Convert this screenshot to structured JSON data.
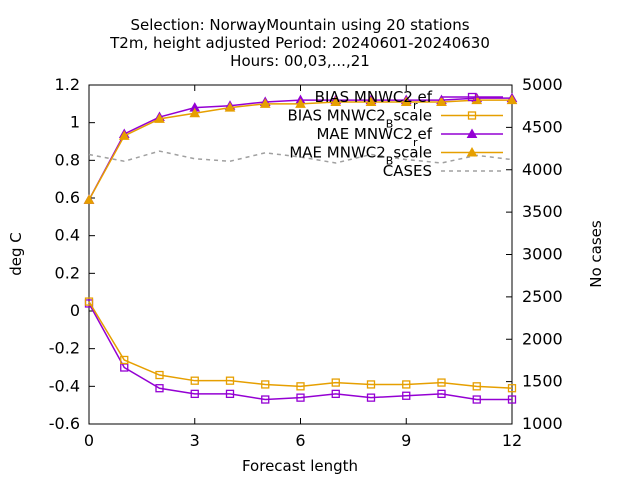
{
  "chart_data": {
    "type": "line",
    "title_lines": [
      "Selection: NorwayMountain using    20 stations",
      "T2m, height adjusted   Period: 20240601-20240630",
      "Hours: 00,03,...,21"
    ],
    "xlabel": "Forecast length",
    "ylabel": "deg C",
    "y2label": "No cases",
    "xlim": [
      0,
      12
    ],
    "ylim": [
      -0.6,
      1.2
    ],
    "y2lim": [
      1000,
      5000
    ],
    "x_ticks": [
      0,
      3,
      6,
      9,
      12
    ],
    "y_ticks": [
      -0.6,
      -0.4,
      -0.2,
      0,
      0.2,
      0.4,
      0.6,
      0.8,
      1,
      1.2
    ],
    "y_tick_labels": [
      "-0.6",
      "-0.4",
      "-0.2",
      "0",
      "0.2",
      "0.4",
      "0.6",
      "0.8",
      "1",
      "1.2"
    ],
    "y2_ticks": [
      1000,
      1500,
      2000,
      2500,
      3000,
      3500,
      4000,
      4500,
      5000
    ],
    "grid": false,
    "legend_position": "top-right",
    "x": [
      0,
      1,
      2,
      3,
      4,
      5,
      6,
      7,
      8,
      9,
      10,
      11,
      12
    ],
    "series": [
      {
        "name": "BIAS MNWC2_ref",
        "label_base": "BIAS MNWC2",
        "label_sub": "r",
        "label_tail": "ef",
        "axis": "y",
        "color": "#9400d3",
        "marker": "square",
        "values": [
          0.04,
          -0.3,
          -0.41,
          -0.44,
          -0.44,
          -0.47,
          -0.46,
          -0.44,
          -0.46,
          -0.45,
          -0.44,
          -0.47,
          -0.47
        ]
      },
      {
        "name": "BIAS MNWC2_Bscale",
        "label_base": "BIAS MNWC2",
        "label_sub": "B",
        "label_tail": "scale",
        "axis": "y",
        "color": "#e69f00",
        "marker": "square",
        "values": [
          0.05,
          -0.26,
          -0.34,
          -0.37,
          -0.37,
          -0.39,
          -0.4,
          -0.38,
          -0.39,
          -0.39,
          -0.38,
          -0.4,
          -0.41
        ]
      },
      {
        "name": "MAE MNWC2_ref",
        "label_base": "MAE MNWC2",
        "label_sub": "r",
        "label_tail": "ef",
        "axis": "y",
        "color": "#9400d3",
        "marker": "triangle",
        "values": [
          0.59,
          0.94,
          1.03,
          1.08,
          1.09,
          1.11,
          1.12,
          1.12,
          1.12,
          1.12,
          1.12,
          1.13,
          1.13
        ]
      },
      {
        "name": "MAE MNWC2_Bscale",
        "label_base": "MAE MNWC2",
        "label_sub": "B",
        "label_tail": "scale",
        "axis": "y",
        "color": "#e69f00",
        "marker": "triangle",
        "values": [
          0.59,
          0.93,
          1.02,
          1.05,
          1.08,
          1.1,
          1.1,
          1.11,
          1.11,
          1.11,
          1.11,
          1.12,
          1.12
        ]
      },
      {
        "name": "CASES",
        "label_base": "CASES",
        "label_sub": "",
        "label_tail": "",
        "axis": "y2",
        "color": "#a0a0a0",
        "marker": "none",
        "dashed": true,
        "values": [
          4180,
          4100,
          4220,
          4130,
          4100,
          4200,
          4150,
          4080,
          4180,
          4120,
          4080,
          4170,
          4120
        ]
      }
    ]
  }
}
